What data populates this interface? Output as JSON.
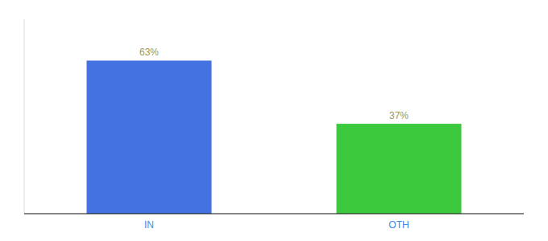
{
  "chart_data": {
    "type": "bar",
    "categories": [
      "IN",
      "OTH"
    ],
    "values": [
      63,
      37
    ],
    "value_labels": [
      "63%",
      "37%"
    ],
    "colors": [
      "#4472E0",
      "#3DC93D"
    ],
    "ylim": [
      0,
      80
    ],
    "data_labels": true,
    "tick_labels": "x"
  }
}
